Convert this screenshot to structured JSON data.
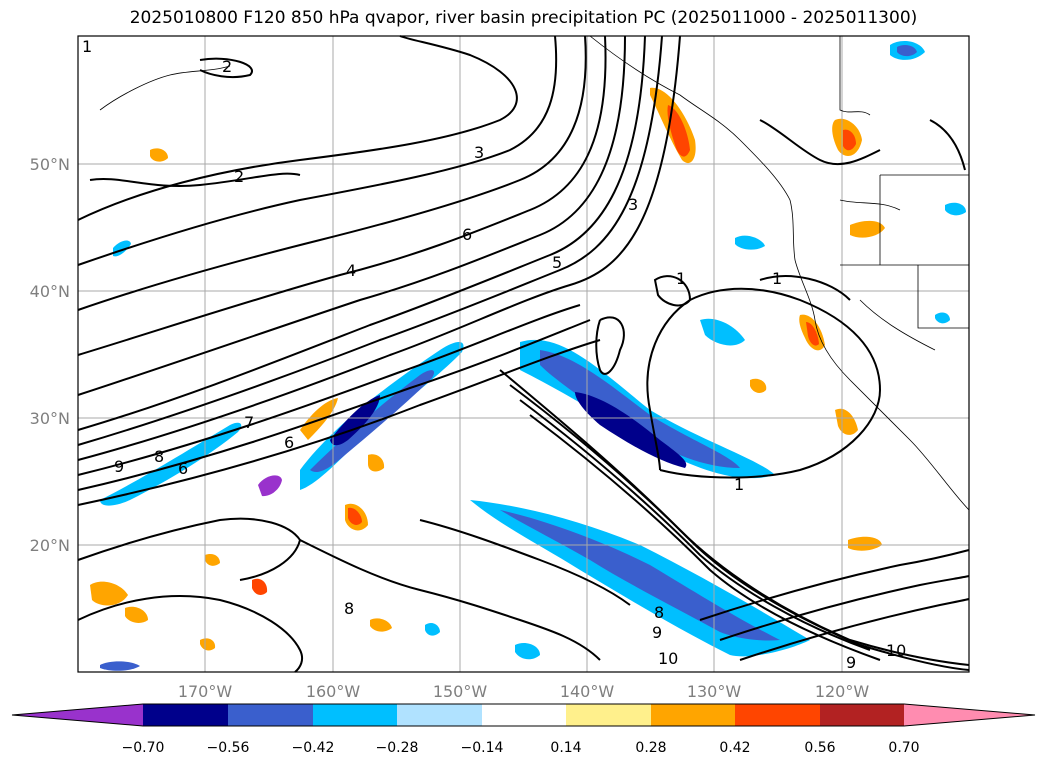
{
  "title": "2025010800 F120 850 hPa qvapor, river basin precipitation PC (2025011000 - 2025011300)",
  "map": {
    "lat_labels": [
      "50°N",
      "40°N",
      "30°N",
      "20°N"
    ],
    "lon_labels": [
      "170°W",
      "160°W",
      "150°W",
      "140°W",
      "130°W",
      "120°W"
    ],
    "gridline_color": "#a8a8a8",
    "contour_labels": [
      "1",
      "2",
      "2",
      "3",
      "3",
      "4",
      "5",
      "6",
      "6",
      "6",
      "7",
      "8",
      "8",
      "8",
      "9",
      "9",
      "9",
      "10",
      "10",
      "1",
      "1",
      "1"
    ]
  },
  "colorbar": {
    "tick_labels": [
      "−0.70",
      "−0.56",
      "−0.42",
      "−0.28",
      "−0.14",
      "0.14",
      "0.28",
      "0.42",
      "0.56",
      "0.70"
    ],
    "colors": [
      "#9932cc",
      "#00008b",
      "#3a5fcd",
      "#00bfff",
      "#b0e2ff",
      "#ffffff",
      "#fff08c",
      "#ffa500",
      "#ff4500",
      "#b22222",
      "#ff8cb0",
      "#ff8cb0"
    ]
  }
}
